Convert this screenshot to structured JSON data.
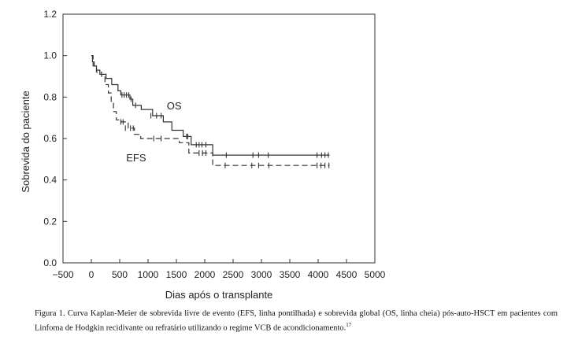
{
  "caption": {
    "text": "Figura 1. Curva Kaplan-Meier de sobrevida livre de evento (EFS, linha pontilhada) e sobrevida global (OS, linha cheia) pós-auto-HSCT em pacientes com Linfoma de Hodgkin recidivante ou refratário utilizando o regime VCB de acondicionamento.",
    "ref": "17"
  },
  "chart_data": {
    "type": "line",
    "xlabel": "Dias após o transplante",
    "ylabel": "Sobrevida do paciente",
    "xlim": [
      -500,
      5000
    ],
    "ylim": [
      0,
      1.2
    ],
    "xticks": [
      -500,
      0,
      500,
      1000,
      1500,
      2000,
      2500,
      3000,
      3500,
      4000,
      4500,
      5000
    ],
    "xtick_labels": [
      "−500",
      "0",
      "500",
      "1000",
      "1500",
      "2000",
      "2500",
      "3000",
      "3500",
      "4000",
      "4500",
      "5000"
    ],
    "yticks": [
      0,
      0.2,
      0.4,
      0.6,
      0.8,
      1.0,
      1.2
    ],
    "ytick_labels": [
      "0.0",
      "0.2",
      "0.4",
      "0.6",
      "0.8",
      "1.0",
      "1.2"
    ],
    "grid": false,
    "series": [
      {
        "name": "OS",
        "style": "solid",
        "color": "#333333",
        "steps": [
          [
            0,
            1.0
          ],
          [
            20,
            0.97
          ],
          [
            50,
            0.95
          ],
          [
            90,
            0.93
          ],
          [
            150,
            0.91
          ],
          [
            260,
            0.89
          ],
          [
            360,
            0.86
          ],
          [
            470,
            0.83
          ],
          [
            520,
            0.81
          ],
          [
            680,
            0.79
          ],
          [
            730,
            0.76
          ],
          [
            880,
            0.74
          ],
          [
            1080,
            0.71
          ],
          [
            1270,
            0.68
          ],
          [
            1420,
            0.64
          ],
          [
            1620,
            0.61
          ],
          [
            1760,
            0.57
          ],
          [
            2000,
            0.57
          ],
          [
            2140,
            0.52
          ],
          [
            4200,
            0.52
          ]
        ],
        "censored": [
          [
            540,
            0.81
          ],
          [
            580,
            0.81
          ],
          [
            620,
            0.81
          ],
          [
            660,
            0.81
          ],
          [
            700,
            0.79
          ],
          [
            780,
            0.76
          ],
          [
            1050,
            0.71
          ],
          [
            1150,
            0.71
          ],
          [
            1230,
            0.71
          ],
          [
            1680,
            0.61
          ],
          [
            1700,
            0.61
          ],
          [
            1850,
            0.57
          ],
          [
            1900,
            0.57
          ],
          [
            1950,
            0.57
          ],
          [
            2020,
            0.57
          ],
          [
            2380,
            0.52
          ],
          [
            2850,
            0.52
          ],
          [
            2950,
            0.52
          ],
          [
            3120,
            0.52
          ],
          [
            3980,
            0.52
          ],
          [
            4060,
            0.52
          ],
          [
            4120,
            0.52
          ],
          [
            4180,
            0.52
          ]
        ]
      },
      {
        "name": "EFS",
        "style": "dashed",
        "color": "#333333",
        "steps": [
          [
            0,
            1.0
          ],
          [
            30,
            0.95
          ],
          [
            90,
            0.92
          ],
          [
            180,
            0.9
          ],
          [
            240,
            0.86
          ],
          [
            300,
            0.82
          ],
          [
            350,
            0.78
          ],
          [
            390,
            0.73
          ],
          [
            440,
            0.69
          ],
          [
            530,
            0.68
          ],
          [
            650,
            0.65
          ],
          [
            760,
            0.62
          ],
          [
            870,
            0.6
          ],
          [
            1550,
            0.58
          ],
          [
            1720,
            0.53
          ],
          [
            2140,
            0.47
          ],
          [
            4200,
            0.47
          ]
        ],
        "censored": [
          [
            520,
            0.68
          ],
          [
            560,
            0.68
          ],
          [
            600,
            0.65
          ],
          [
            690,
            0.65
          ],
          [
            740,
            0.65
          ],
          [
            1100,
            0.6
          ],
          [
            1230,
            0.6
          ],
          [
            1900,
            0.53
          ],
          [
            1960,
            0.53
          ],
          [
            2020,
            0.53
          ],
          [
            2360,
            0.47
          ],
          [
            2830,
            0.47
          ],
          [
            2950,
            0.47
          ],
          [
            3130,
            0.47
          ],
          [
            3980,
            0.47
          ],
          [
            4050,
            0.47
          ],
          [
            4120,
            0.47
          ],
          [
            4190,
            0.47
          ]
        ]
      }
    ],
    "labels": [
      {
        "text": "OS",
        "x": 1460,
        "y": 0.74
      },
      {
        "text": "EFS",
        "x": 790,
        "y": 0.49
      }
    ]
  }
}
